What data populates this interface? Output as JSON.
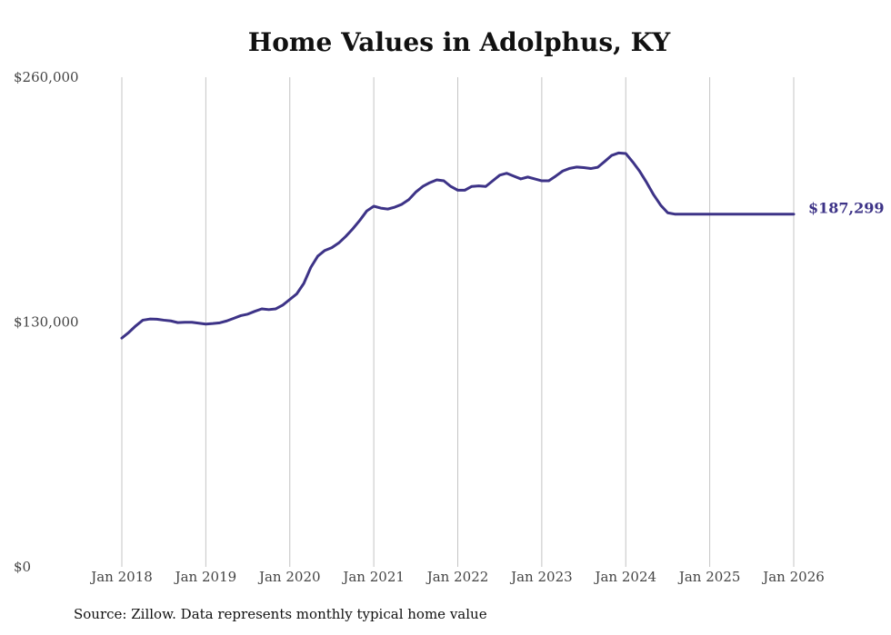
{
  "chart_data": {
    "type": "line",
    "title": "Home Values in Adolphus, KY",
    "xlabel": "",
    "ylabel": "",
    "ylim": [
      0,
      260000
    ],
    "yticks": [
      0,
      130000,
      260000
    ],
    "ytick_labels": [
      "$0",
      "$130,000",
      "$260,000"
    ],
    "xtick_labels": [
      "Jan 2018",
      "Jan 2019",
      "Jan 2020",
      "Jan 2021",
      "Jan 2022",
      "Jan 2023",
      "Jan 2024",
      "Jan 2025",
      "Jan 2026"
    ],
    "grid": "vertical",
    "line_color": "#3d3387",
    "end_label": "$187,299",
    "series": [
      {
        "name": "Typical home value",
        "x": [
          0,
          1,
          2,
          3,
          4,
          5,
          6,
          7,
          8,
          9,
          10,
          11,
          12,
          13,
          14,
          15,
          16,
          17,
          18,
          19,
          20,
          21,
          22,
          23,
          24,
          25,
          26,
          27,
          28,
          29,
          30,
          31,
          32,
          33,
          34,
          35,
          36,
          37,
          38,
          39,
          40,
          41,
          42,
          43,
          44,
          45,
          46,
          47,
          48,
          49,
          50,
          51,
          52,
          53,
          54,
          55,
          56,
          57,
          58,
          59,
          60,
          61,
          62,
          63,
          64,
          65,
          66,
          67,
          68,
          69,
          70,
          71,
          72,
          73,
          74,
          75,
          76,
          77,
          78,
          79,
          80,
          81,
          82,
          83,
          84,
          85,
          86,
          87,
          88,
          89,
          90,
          91,
          92,
          93,
          94,
          95,
          96
        ],
        "values": [
          121500,
          124500,
          128000,
          131000,
          131600,
          131500,
          131000,
          130600,
          129700,
          129900,
          129900,
          129400,
          128900,
          129200,
          129600,
          130600,
          132000,
          133400,
          134200,
          135700,
          137000,
          136600,
          137000,
          139000,
          142000,
          145000,
          150500,
          159000,
          165000,
          168000,
          169500,
          172000,
          175500,
          179500,
          184000,
          189000,
          191500,
          190500,
          190000,
          191000,
          192500,
          195000,
          199000,
          202000,
          204000,
          205500,
          205000,
          202000,
          200000,
          200000,
          202000,
          202300,
          202000,
          205000,
          208000,
          209000,
          207500,
          206000,
          207000,
          206000,
          205000,
          205000,
          207500,
          210200,
          211600,
          212300,
          212000,
          211500,
          212200,
          215300,
          218500,
          219800,
          219500,
          215000,
          210000,
          204000,
          197500,
          192000,
          188000,
          187299,
          187299,
          187299,
          187299,
          187299,
          187299,
          187299,
          187299,
          187299,
          187299,
          187299,
          187299,
          187299,
          187299,
          187299,
          187299,
          187299,
          187299
        ]
      }
    ],
    "notes": "x is months since Jan 2018"
  },
  "source_text": "Source: Zillow. Data represents monthly typical home value"
}
